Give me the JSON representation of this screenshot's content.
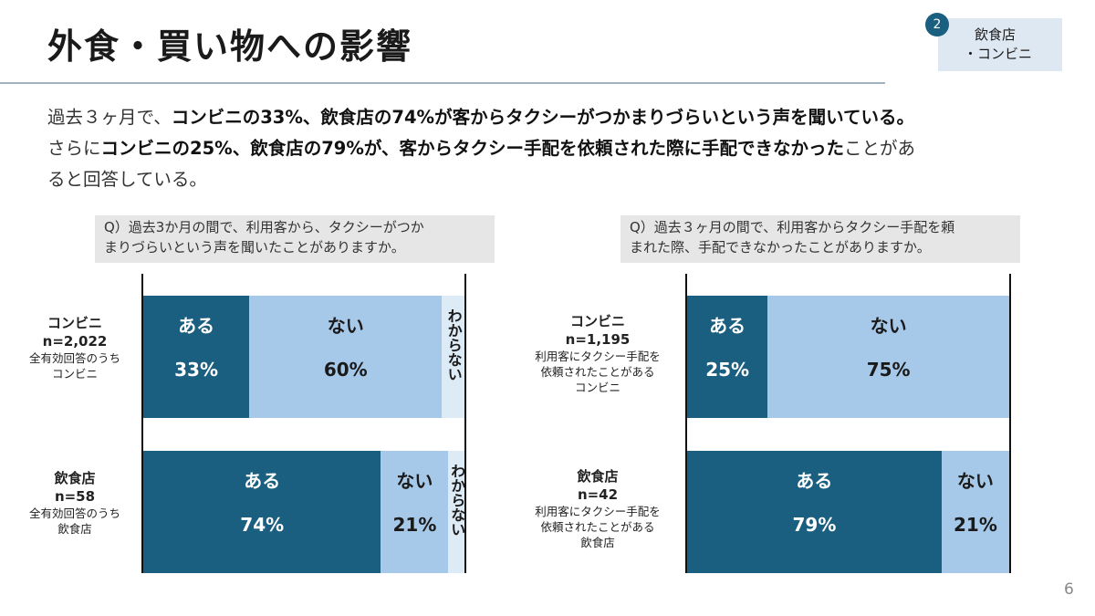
{
  "header": {
    "title": "外食・買い物への影響",
    "section_number": "2",
    "section_line1": "飲食店",
    "section_line2": "・コンビニ"
  },
  "intro": {
    "l1_a": "過去３ヶ月で、",
    "l1_b": "コンビニの33%、飲食店の74%が客からタクシーがつかまりづらいという声を聞いている。",
    "l2_a": "さらに",
    "l2_b": "コンビニの25%、飲食店の79%が、客からタクシー手配を依頼された際に手配できなかった",
    "l2_c": "ことがあ",
    "l3": "ると回答している。"
  },
  "page_number": "6",
  "colors": {
    "dark": "#1a5e80",
    "mid": "#a7c9e9",
    "light": "#ddebf7",
    "white_text": "#ffffff",
    "dark_text": "#1a1a1a"
  },
  "chart_data": [
    {
      "type": "bar",
      "orientation": "horizontal",
      "stacked": true,
      "question": "Q）過去3か月の間で、利用客から、タクシーがつかまりづらいという声を聞いたことがありますか。",
      "question_l1": "Q）過去3か月の間で、利用客から、タクシーがつか",
      "question_l2": "まりづらいという声を聞いたことがありますか。",
      "categories": [
        {
          "name": "コンビニ",
          "n": "n=2,022",
          "sub1": "全有効回答のうち",
          "sub2": "コンビニ",
          "sub3": ""
        },
        {
          "name": "飲食店",
          "n": "n=58",
          "sub1": "全有効回答のうち",
          "sub2": "飲食店",
          "sub3": ""
        }
      ],
      "series": [
        {
          "name": "ある",
          "values": [
            33,
            74
          ],
          "labels": [
            "33%",
            "74%"
          ]
        },
        {
          "name": "ない",
          "values": [
            60,
            21
          ],
          "labels": [
            "60%",
            "21%"
          ]
        },
        {
          "name": "わからない",
          "values": [
            7,
            5
          ],
          "labels": [
            "",
            ""
          ]
        }
      ],
      "xlim": [
        0,
        100
      ]
    },
    {
      "type": "bar",
      "orientation": "horizontal",
      "stacked": true,
      "question": "Q）過去３ヶ月の間で、利用客からタクシー手配を頼まれた際、手配できなかったことがありますか。",
      "question_l1": "Q）過去３ヶ月の間で、利用客からタクシー手配を頼",
      "question_l2": "まれた際、手配できなかったことがありますか。",
      "categories": [
        {
          "name": "コンビニ",
          "n": "n=1,195",
          "sub1": "利用客にタクシー手配を",
          "sub2": "依頼されたことがある",
          "sub3": "コンビニ"
        },
        {
          "name": "飲食店",
          "n": "n=42",
          "sub1": "利用客にタクシー手配を",
          "sub2": "依頼されたことがある",
          "sub3": "飲食店"
        }
      ],
      "series": [
        {
          "name": "ある",
          "values": [
            25,
            79
          ],
          "labels": [
            "25%",
            "79%"
          ]
        },
        {
          "name": "ない",
          "values": [
            75,
            21
          ],
          "labels": [
            "75%",
            "21%"
          ]
        }
      ],
      "xlim": [
        0,
        100
      ]
    }
  ]
}
